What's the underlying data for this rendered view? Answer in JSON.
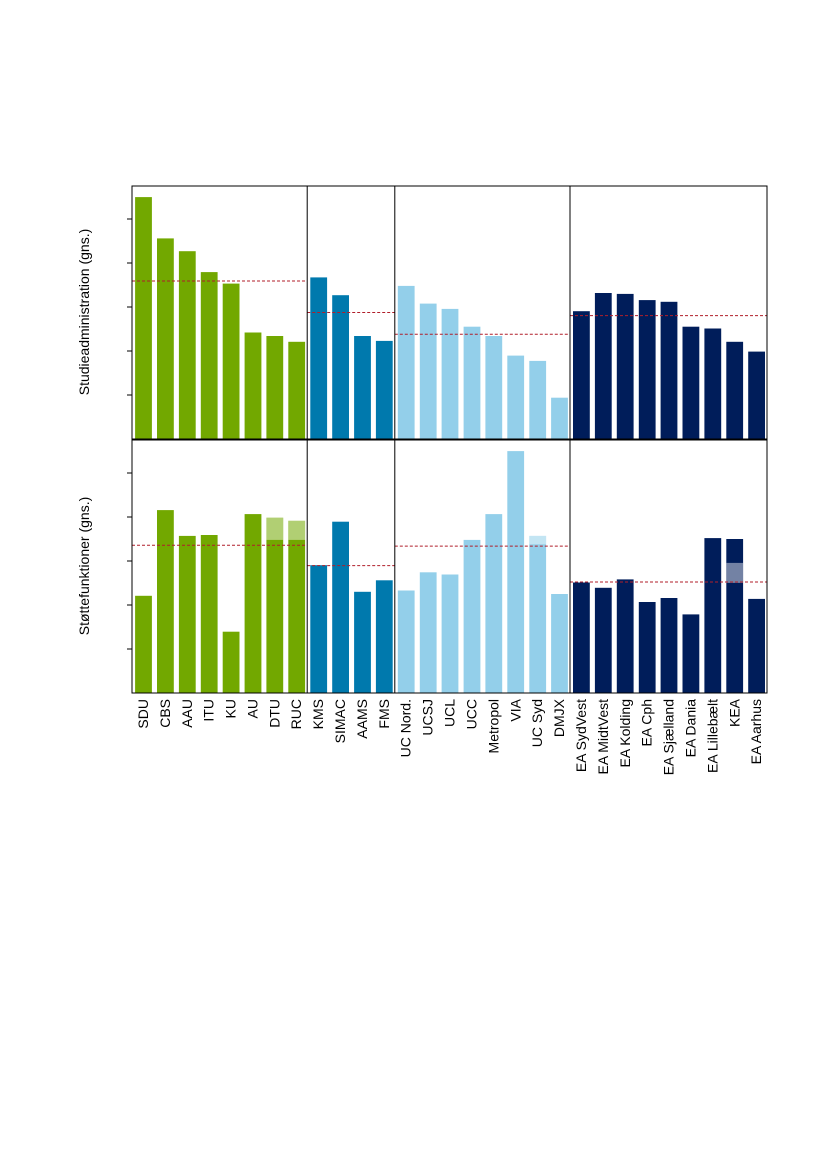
{
  "chart_data": {
    "type": "bar",
    "title": "",
    "xlabel": "",
    "ytick_labels_shown": false,
    "categories": [
      "SDU",
      "CBS",
      "AAU",
      "ITU",
      "KU",
      "AU",
      "DTU",
      "RUC",
      "KMS",
      "SIMAC",
      "AAMS",
      "FMS",
      "UC Nord.",
      "UCSJ",
      "UCL",
      "UCC",
      "Metropol",
      "VIA",
      "UC Syd",
      "DMJX",
      "EA SydVest",
      "EA MidtVest",
      "EA Kolding",
      "EA Cph",
      "EA Sjælland",
      "EA Dania",
      "EA Lillebælt",
      "KEA",
      "EA Aarhus"
    ],
    "groups": [
      {
        "categories": [
          "SDU",
          "CBS",
          "AAU",
          "ITU",
          "KU",
          "AU",
          "DTU",
          "RUC"
        ],
        "color": "#72a800"
      },
      {
        "categories": [
          "KMS",
          "SIMAC",
          "AAMS",
          "FMS"
        ],
        "color": "#0079ad"
      },
      {
        "categories": [
          "UC Nord.",
          "UCSJ",
          "UCL",
          "UCC",
          "Metropol",
          "VIA",
          "UC Syd",
          "DMJX"
        ],
        "color": "#93cfea"
      },
      {
        "categories": [
          "EA SydVest",
          "EA MidtVest",
          "EA Kolding",
          "EA Cph",
          "EA Sjælland",
          "EA Dania",
          "EA Lillebælt",
          "KEA",
          "EA Aarhus"
        ],
        "color": "#001d5a"
      }
    ],
    "panels": [
      {
        "ylabel": "Studieadministration (gns.)",
        "ylim": [
          0,
          5.7
        ],
        "values": [
          5.45,
          4.52,
          4.23,
          3.76,
          3.5,
          2.4,
          2.32,
          2.19,
          3.64,
          3.24,
          2.32,
          2.21,
          3.45,
          3.05,
          2.93,
          2.53,
          2.32,
          1.88,
          1.76,
          0.93,
          2.88,
          3.29,
          3.27,
          3.13,
          3.09,
          2.53,
          2.49,
          2.19,
          1.97
        ],
        "group_averages": [
          3.56,
          2.85,
          2.36,
          2.78
        ],
        "overlay_marks": []
      },
      {
        "ylabel": "Støttefunktioner (gns.)",
        "ylim": [
          0,
          5.7
        ],
        "values": [
          2.19,
          4.12,
          3.54,
          3.56,
          1.38,
          4.03,
          3.95,
          3.88,
          2.88,
          3.86,
          2.28,
          2.54,
          2.31,
          2.72,
          2.67,
          3.45,
          4.03,
          5.45,
          3.54,
          2.23,
          2.49,
          2.37,
          2.56,
          2.05,
          2.14,
          1.77,
          3.49,
          3.47,
          2.12
        ],
        "group_averages": [
          3.33,
          2.87,
          3.31,
          2.5
        ],
        "overlay_marks": [
          {
            "category": "DTU",
            "from": 3.45,
            "to": 3.95
          },
          {
            "category": "RUC",
            "from": 3.45,
            "to": 3.88
          },
          {
            "category": "UC Syd",
            "from": 3.35,
            "to": 3.54
          },
          {
            "category": "KEA",
            "from": 2.48,
            "to": 2.93
          }
        ]
      }
    ],
    "average_line_color": "#b01e2a",
    "grid": false,
    "legend": "none"
  }
}
